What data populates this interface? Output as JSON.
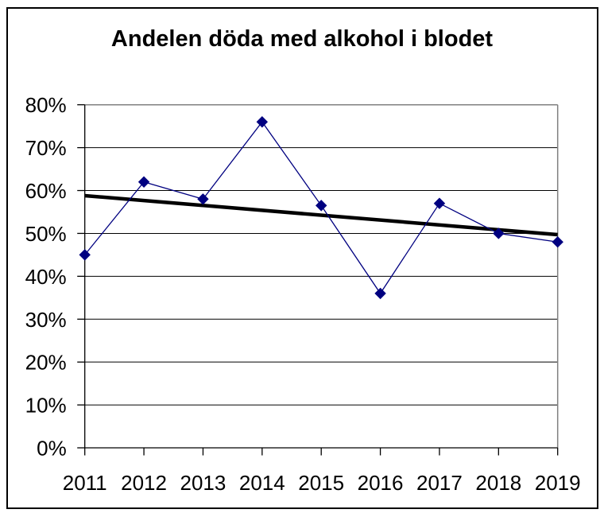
{
  "figure": {
    "background": "#ffffff",
    "border_color": "#000000",
    "text_color": "#000000"
  },
  "chart_data": {
    "type": "line",
    "title": "Andelen döda med alkohol i blodet",
    "categories": [
      "2011",
      "2012",
      "2013",
      "2014",
      "2015",
      "2016",
      "2017",
      "2018",
      "2019"
    ],
    "series": [
      {
        "name": "Andelen döda med alkohol i blodet",
        "values": [
          45,
          62,
          58,
          76,
          56.5,
          36,
          57,
          50,
          48
        ],
        "color": "#000080",
        "marker": "diamond",
        "line_width": 1.3
      }
    ],
    "trendline": {
      "type": "linear",
      "start_value": 58.8,
      "end_value": 49.7,
      "color": "#000000",
      "line_width": 4.5
    },
    "y_axis": {
      "min": 0,
      "max": 80,
      "tick_step": 10,
      "tick_labels": [
        "0%",
        "10%",
        "20%",
        "30%",
        "40%",
        "50%",
        "60%",
        "70%",
        "80%"
      ]
    },
    "grid": {
      "horizontal": true,
      "vertical": false,
      "color": "#000000"
    },
    "plot_border_color": "#808080",
    "axis_color": "#000000",
    "tick_label_color": "#000000",
    "legend": "none"
  }
}
